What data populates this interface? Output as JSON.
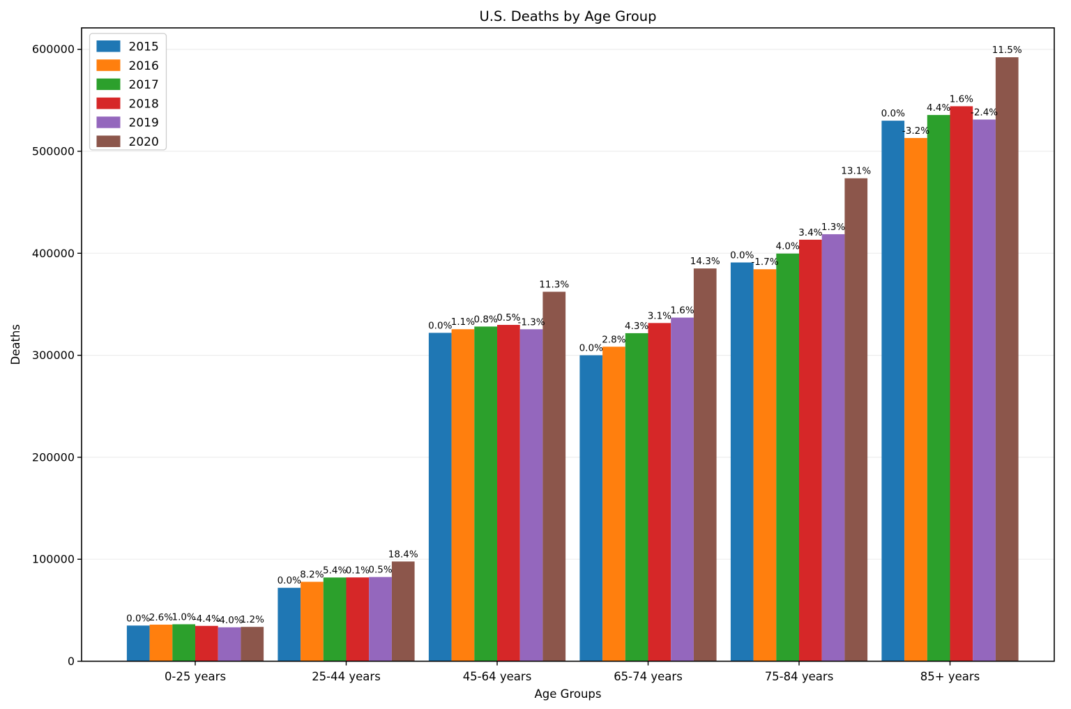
{
  "title": "U.S. Deaths by Age Group",
  "chart_data": {
    "type": "bar",
    "title": "U.S. Deaths by Age Group",
    "xlabel": "Age Groups",
    "ylabel": "Deaths",
    "categories": [
      "0-25 years",
      "25-44 years",
      "45-64 years",
      "65-74 years",
      "75-84 years",
      "85+   years"
    ],
    "series": [
      {
        "name": "2015",
        "color": "#1f77b4",
        "values": [
          35000,
          72000,
          322000,
          300000,
          391000,
          530000
        ],
        "bar_labels": [
          "0.0%",
          "0.0%",
          "0.0%",
          "0.0%",
          "0.0%",
          "0.0%"
        ]
      },
      {
        "name": "2016",
        "color": "#ff7f0e",
        "values": [
          35900,
          77900,
          325540,
          308400,
          384350,
          513040
        ],
        "bar_labels": [
          "2.6%",
          "8.2%",
          "1.1%",
          "2.8%",
          "-1.7%",
          "-3.2%"
        ]
      },
      {
        "name": "2017",
        "color": "#2ca02c",
        "values": [
          36270,
          82110,
          328150,
          321660,
          399730,
          535610
        ],
        "bar_labels": [
          "1.0%",
          "5.4%",
          "0.8%",
          "4.3%",
          "4.0%",
          "4.4%"
        ]
      },
      {
        "name": "2018",
        "color": "#d62728",
        "values": [
          34670,
          82190,
          329790,
          331630,
          413320,
          544180
        ],
        "bar_labels": [
          "-4.4%",
          "0.1%",
          "0.5%",
          "3.1%",
          "3.4%",
          "1.6%"
        ]
      },
      {
        "name": "2019",
        "color": "#9467bd",
        "values": [
          33290,
          82600,
          325500,
          336940,
          418690,
          531120
        ],
        "bar_labels": [
          "-4.0%",
          "0.5%",
          "-1.3%",
          "1.6%",
          "1.3%",
          "-2.4%"
        ]
      },
      {
        "name": "2020",
        "color": "#8c564b",
        "values": [
          33690,
          97800,
          362280,
          385120,
          473540,
          592200
        ],
        "bar_labels": [
          "1.2%",
          "18.4%",
          "11.3%",
          "14.3%",
          "13.1%",
          "11.5%"
        ]
      }
    ],
    "ylim": [
      0,
      621000
    ],
    "yticks": [
      0,
      100000,
      200000,
      300000,
      400000,
      500000,
      600000
    ],
    "grid": true,
    "legend_position": "upper left",
    "colors": {
      "bar_label": "#000000",
      "gridline": "#ededed",
      "spine": "#000000",
      "legend_border": "#cccccc",
      "legend_bg": "#ffffff"
    }
  }
}
